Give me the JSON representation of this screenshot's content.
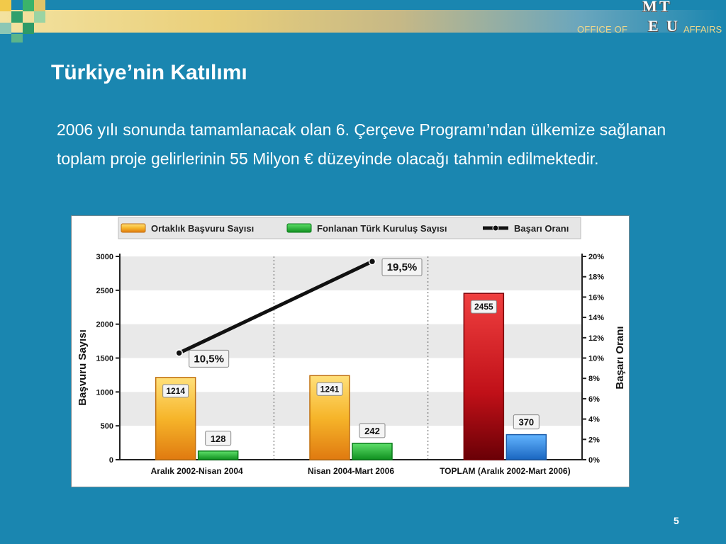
{
  "header": {
    "brand_left": "OFFICE OF",
    "brand_right": "AFFAIRS",
    "logo_letters": [
      "M",
      "E",
      "T",
      "U"
    ]
  },
  "slide": {
    "title": "Türkiye’nin Katılımı",
    "paragraph": "2006 yılı sonunda tamamlanacak olan 6. Çerçeve Programı’ndan ülkemize sağlanan toplam proje gelirlerinin 55 Milyon € düzeyinde olacağı tahmin edilmektedir.",
    "page_number": "5"
  },
  "colors": {
    "background": "#1a86b0",
    "orange_bar": "#f2a81c",
    "green_bar": "#1fae2c",
    "red_bar": "#c8141a",
    "blue_bar": "#2e8be0"
  },
  "chart_data": {
    "type": "bar",
    "title": "",
    "ylabel": "Başvuru Sayısı",
    "y2label": "Başarı Oranı",
    "ylim": [
      0,
      3000
    ],
    "y2lim": [
      0,
      20
    ],
    "yticks": [
      "0",
      "500",
      "1000",
      "1500",
      "2000",
      "2500",
      "3000"
    ],
    "y2ticks": [
      "0%",
      "2%",
      "4%",
      "6%",
      "8%",
      "10%",
      "12%",
      "14%",
      "16%",
      "18%",
      "20%"
    ],
    "categories": [
      "Aralık 2002-Nisan 2004",
      "Nisan 2004-Mart 2006",
      "TOPLAM (Aralık 2002-Mart 2006)"
    ],
    "legend": [
      "Ortaklık Başvuru Sayısı",
      "Fonlanan Türk Kuruluş Sayısı",
      "Başarı Oranı"
    ],
    "legend_position": "top",
    "grid": true,
    "series": [
      {
        "name": "Ortaklık Başvuru Sayısı",
        "values": [
          1214,
          1241,
          2455
        ]
      },
      {
        "name": "Fonlanan Türk Kuruluş Sayısı",
        "values": [
          128,
          242,
          370
        ]
      },
      {
        "name": "Başarı Oranı",
        "values": [
          10.5,
          19.5,
          null
        ],
        "labels": [
          "10,5%",
          "19,5%",
          ""
        ]
      }
    ]
  }
}
